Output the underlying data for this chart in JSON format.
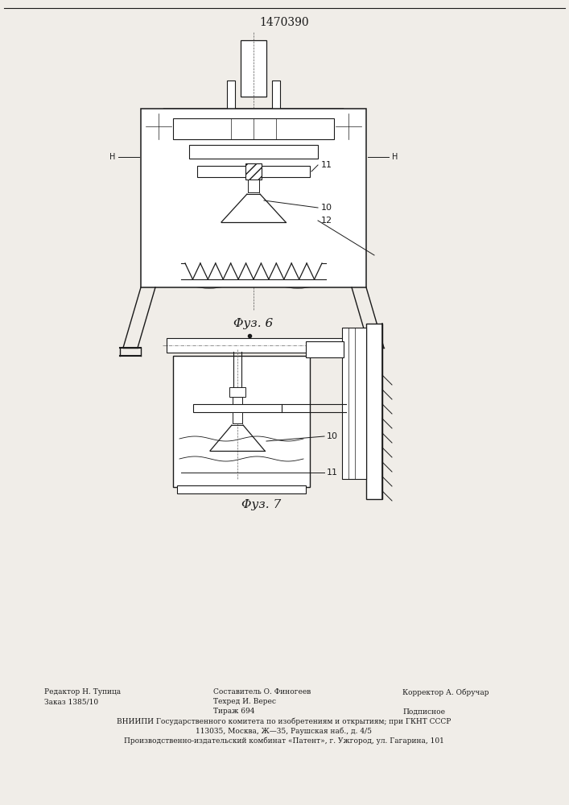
{
  "title": "1470390",
  "title_fontsize": 11,
  "fig6_label": "Φуз. 6",
  "fig7_label": "Φуз. 7",
  "label_10": "10",
  "label_11": "11",
  "label_12": "12",
  "bg_color": "#f0ede8",
  "line_color": "#1a1a1a",
  "footer_col1_line1": "Редактор Н. Тупица",
  "footer_col1_line2": "Заказ 1385/10",
  "footer_col2_line1": "Составитель О. Финогеев",
  "footer_col2_line2": "Техред И. Верес",
  "footer_col2_line3": "Тираж 694",
  "footer_col3_line1": "Корректор А. Обручар",
  "footer_col3_line3": "Подписное",
  "footer_line4": "ВНИИПИ Государственного комитета по изобретениям и открытиям; при ГКНТ СССР",
  "footer_line5": "113035, Москва, Ж—35, Раушская наб., д. 4/5",
  "footer_line6": "Производственно-издательский комбинат «Патент», г. Ужгород, ул. Гагарина, 101"
}
